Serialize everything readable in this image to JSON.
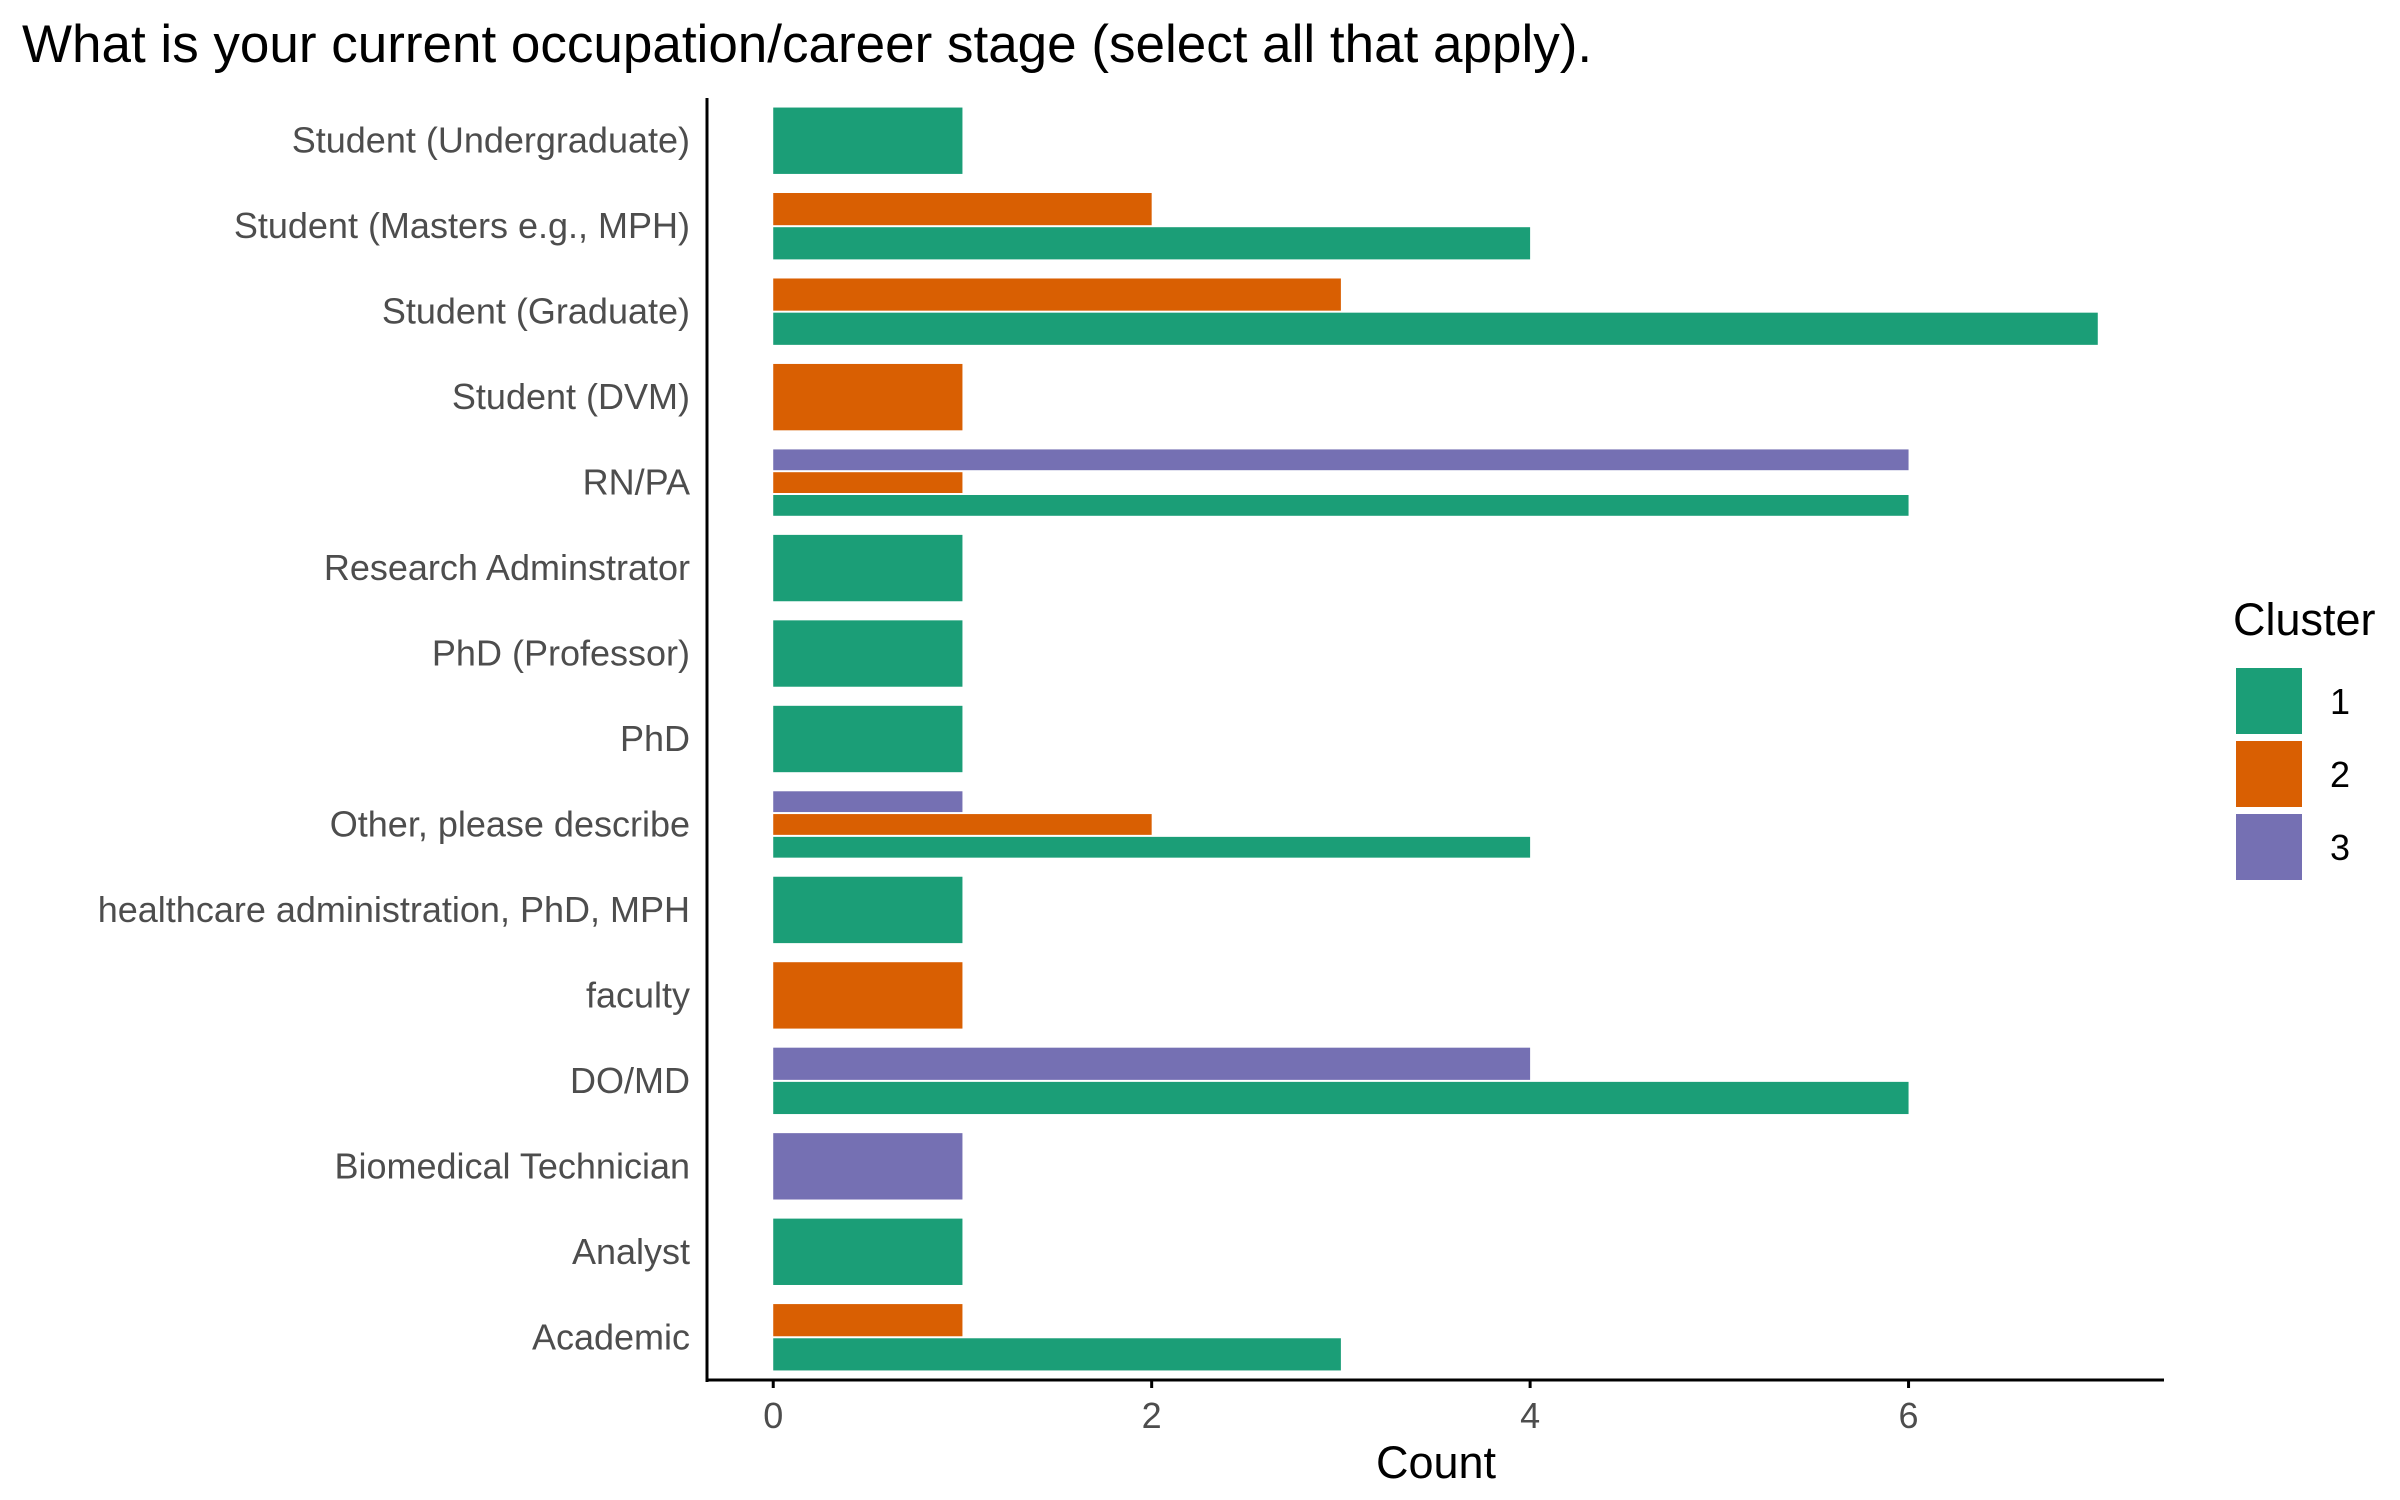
{
  "chart_data": {
    "type": "bar",
    "orientation": "horizontal",
    "title": "What is your current occupation/career stage (select all that apply).",
    "xlabel": "Count",
    "ylabel": "",
    "xlim": [
      -0.35,
      7.35
    ],
    "xticks": [
      0,
      2,
      4,
      6
    ],
    "grid": false,
    "legend": {
      "title": "Cluster",
      "position": "right"
    },
    "categories": [
      "Student (Undergraduate)",
      "Student (Masters e.g., MPH)",
      "Student (Graduate)",
      "Student (DVM)",
      "RN/PA",
      "Research Adminstrator",
      "PhD (Professor)",
      "PhD",
      "Other, please describe",
      "healthcare administration, PhD, MPH",
      "faculty",
      "DO/MD",
      "Biomedical Technician",
      "Analyst",
      "Academic"
    ],
    "series": [
      {
        "name": "1",
        "color": "#1b9e77",
        "values": [
          1,
          4,
          7,
          null,
          6,
          1,
          1,
          1,
          4,
          1,
          null,
          6,
          null,
          1,
          3
        ]
      },
      {
        "name": "2",
        "color": "#d95f02",
        "values": [
          null,
          2,
          3,
          1,
          1,
          null,
          null,
          null,
          2,
          null,
          1,
          null,
          null,
          null,
          1
        ]
      },
      {
        "name": "3",
        "color": "#7570b3",
        "values": [
          null,
          null,
          null,
          null,
          6,
          null,
          null,
          null,
          1,
          null,
          null,
          4,
          1,
          null,
          null
        ]
      }
    ]
  }
}
